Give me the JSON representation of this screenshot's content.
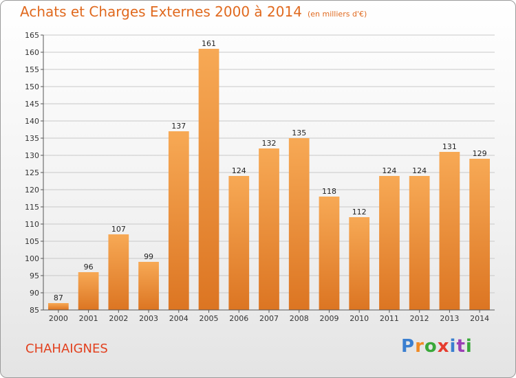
{
  "header": {
    "title": "Achats et Charges Externes 2000 à 2014",
    "unit": "(en milliers d'€)"
  },
  "footer": {
    "town": "CHAHAIGNES",
    "logo_letters": [
      "P",
      "r",
      "o",
      "x",
      "i",
      "t",
      "i"
    ],
    "logo_colors": [
      "#3a7fd0",
      "#f08a24",
      "#3aa83a",
      "#e63c2e",
      "#3a7fd0",
      "#9b3fb5",
      "#3aa83a"
    ]
  },
  "colors": {
    "bar_top": "#f7a955",
    "bar_bottom": "#dc7522",
    "grid": "#c8c8c8",
    "axis": "#555555"
  },
  "chart_data": {
    "type": "bar",
    "title": "Achats et Charges Externes 2000 à 2014",
    "categories": [
      "2000",
      "2001",
      "2002",
      "2003",
      "2004",
      "2005",
      "2006",
      "2007",
      "2008",
      "2009",
      "2010",
      "2011",
      "2012",
      "2013",
      "2014"
    ],
    "values": [
      87,
      96,
      107,
      99,
      137,
      161,
      124,
      132,
      135,
      118,
      112,
      124,
      124,
      131,
      129
    ],
    "yticks": [
      85,
      90,
      95,
      100,
      105,
      110,
      115,
      120,
      125,
      130,
      135,
      140,
      145,
      150,
      155,
      160,
      165
    ],
    "ylim": [
      85,
      165
    ],
    "grid": true
  }
}
